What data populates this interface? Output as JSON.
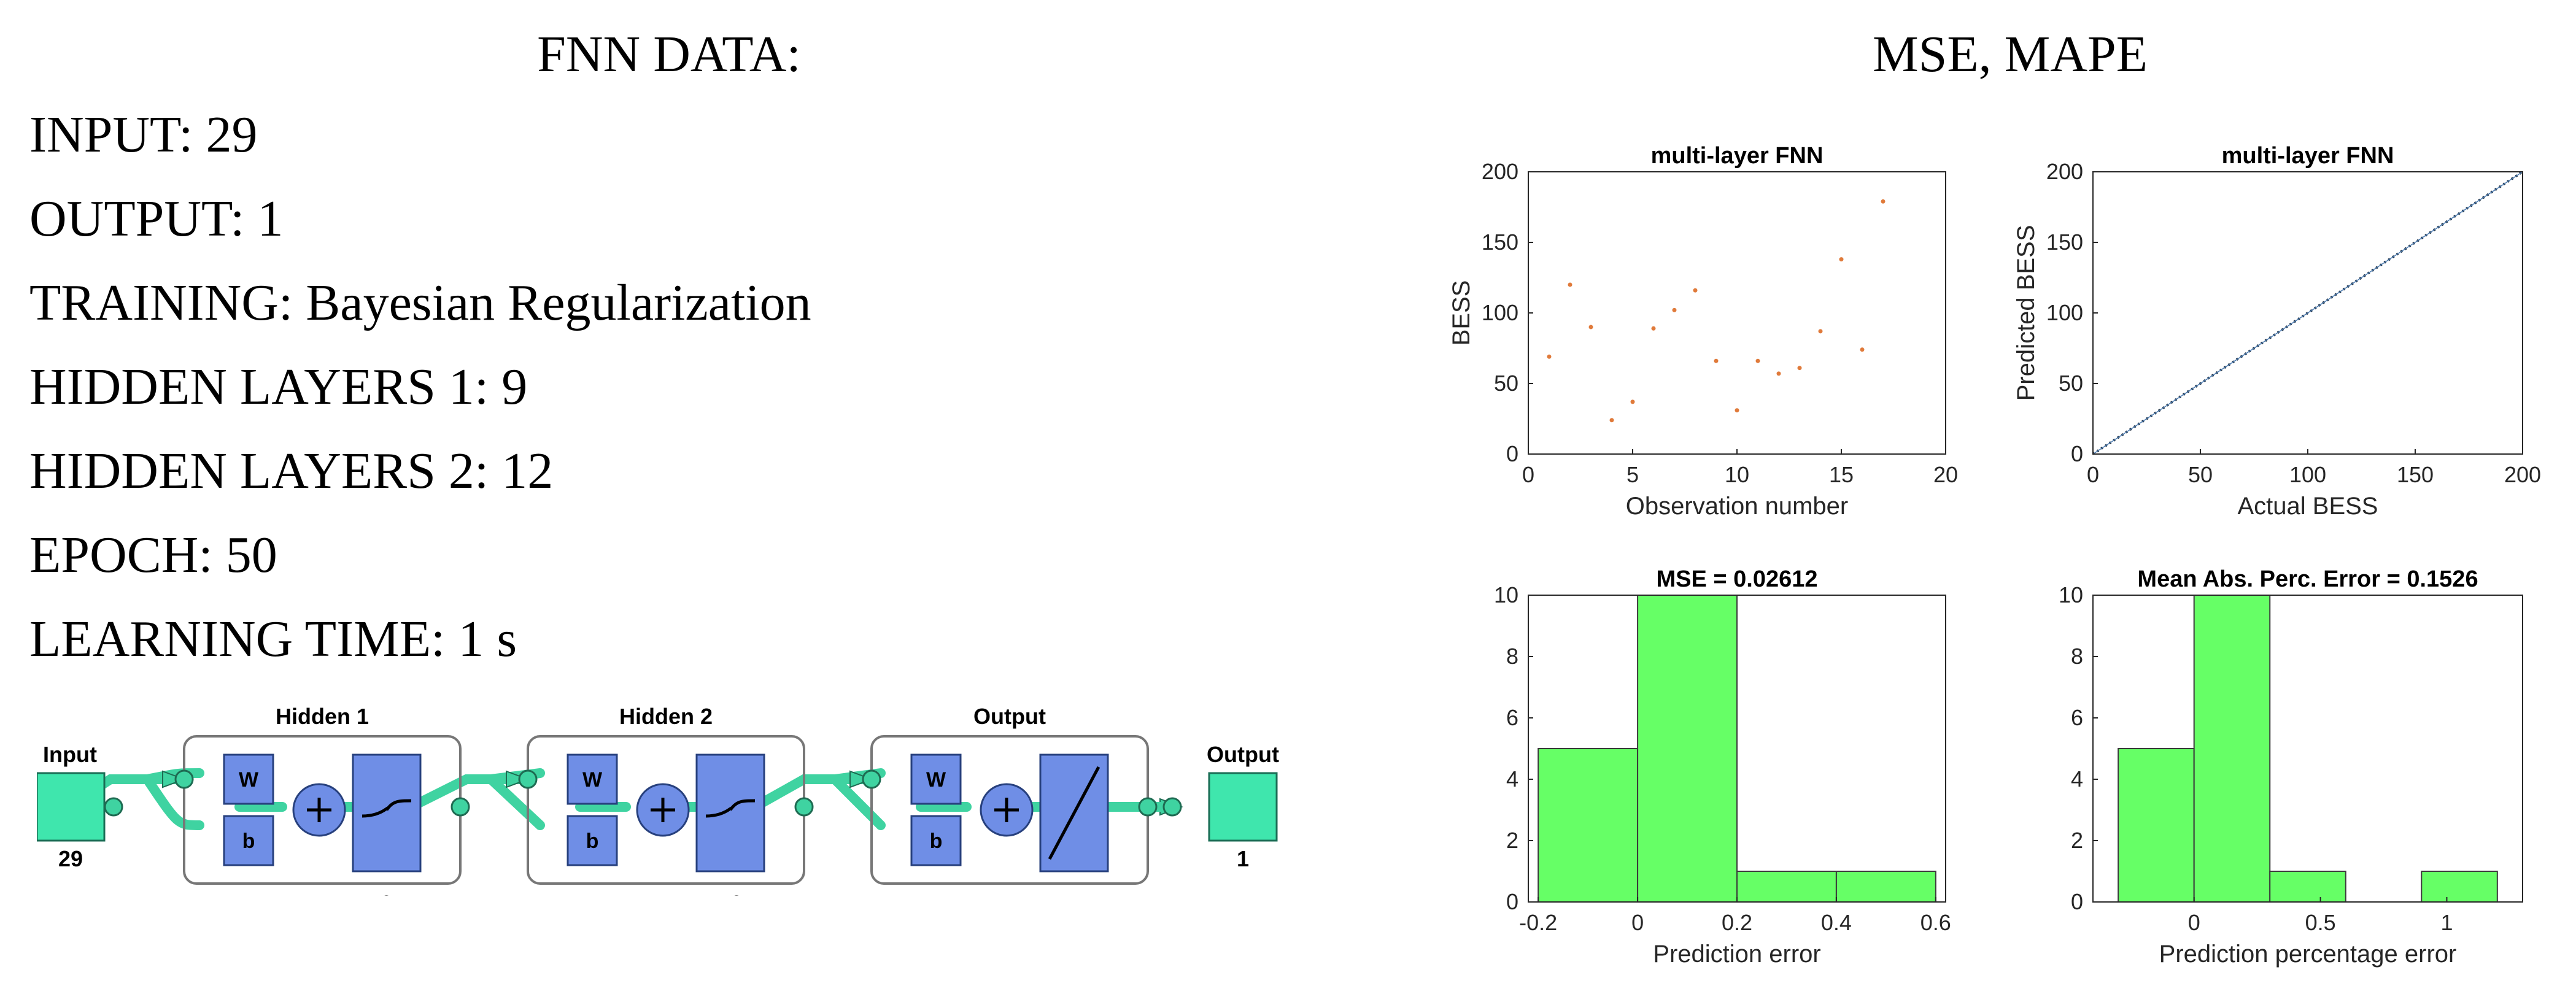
{
  "headings": {
    "left": "FNN DATA:",
    "right": "MSE, MAPE"
  },
  "specs": [
    {
      "key": "INPUT:",
      "value": "29"
    },
    {
      "key": "OUTPUT:",
      "value": "1"
    },
    {
      "key": "TRAINING:",
      "value": "Bayesian Regularization"
    },
    {
      "key": "HIDDEN LAYERS 1:",
      "value": "9"
    },
    {
      "key": "HIDDEN LAYERS 2:",
      "value": "12"
    },
    {
      "key": "EPOCH:",
      "value": "50"
    },
    {
      "key": "LEARNING TIME:",
      "value": "1 s"
    }
  ],
  "network": {
    "input": {
      "label": "Input",
      "size": "29"
    },
    "output": {
      "label": "Output",
      "size": "1"
    },
    "layers": [
      {
        "label": "Hidden 1",
        "size": "9",
        "activation": "sigmoid"
      },
      {
        "label": "Hidden 2",
        "size": "12",
        "activation": "sigmoid"
      },
      {
        "label": "Output",
        "size": "1",
        "activation": "linear"
      }
    ],
    "weight_label": "W",
    "bias_label": "b",
    "colors": {
      "block": "#6f8ee6",
      "io": "#3fe6ad",
      "wire": "#3fd3a1",
      "node": "#3fd3a1"
    }
  },
  "chart_data": [
    {
      "id": "obs",
      "type": "scatter",
      "title": "multi-layer FNN",
      "xlabel": "Observation number",
      "ylabel": "BESS",
      "xlim": [
        0,
        20
      ],
      "ylim": [
        0,
        200
      ],
      "xticks": [
        "0",
        "5",
        "10",
        "15",
        "20"
      ],
      "yticks": [
        "0",
        "50",
        "100",
        "150",
        "200"
      ],
      "series": [
        {
          "color": "#e07a3a",
          "x": [
            1,
            2,
            3,
            4,
            5,
            6,
            7,
            8,
            9,
            10,
            11,
            12,
            13,
            14,
            15,
            16,
            17
          ],
          "y": [
            69,
            120,
            90,
            24,
            37,
            89,
            102,
            116,
            66,
            31,
            66,
            57,
            61,
            87,
            138,
            74,
            179
          ]
        }
      ]
    },
    {
      "id": "reg",
      "type": "line",
      "title": "multi-layer FNN",
      "xlabel": "Actual BESS",
      "ylabel": "Predicted BESS",
      "xlim": [
        0,
        200
      ],
      "ylim": [
        0,
        200
      ],
      "xticks": [
        "0",
        "50",
        "100",
        "150",
        "200"
      ],
      "yticks": [
        "0",
        "50",
        "100",
        "150",
        "200"
      ],
      "series": [
        {
          "color": "#4a7ab0",
          "x": [
            0,
            200
          ],
          "y": [
            0,
            200
          ]
        }
      ]
    },
    {
      "id": "mse",
      "type": "bar",
      "title": "MSE = 0.02612",
      "xlabel": "Prediction error",
      "ylabel": "",
      "xlim": [
        -0.22,
        0.62
      ],
      "ylim": [
        0,
        10
      ],
      "xticks": [
        "-0.2",
        "0",
        "0.2",
        "0.4",
        "0.6"
      ],
      "xtick_values": [
        -0.2,
        0,
        0.2,
        0.4,
        0.6
      ],
      "yticks": [
        "0",
        "2",
        "4",
        "6",
        "8",
        "10"
      ],
      "color": "#66ff66",
      "bins": [
        [
          -0.2,
          0,
          5
        ],
        [
          0,
          0.2,
          10
        ],
        [
          0.2,
          0.4,
          1
        ],
        [
          0.4,
          0.6,
          1
        ]
      ]
    },
    {
      "id": "mape",
      "type": "bar",
      "title": "Mean Abs. Perc. Error = 0.1526",
      "xlabel": "Prediction percentage error",
      "ylabel": "",
      "xlim": [
        -0.4,
        1.3
      ],
      "ylim": [
        0,
        10
      ],
      "xticks": [
        "0",
        "0.5",
        "1"
      ],
      "xtick_values": [
        0,
        0.5,
        1
      ],
      "yticks": [
        "0",
        "2",
        "4",
        "6",
        "8",
        "10"
      ],
      "color": "#66ff66",
      "bins": [
        [
          -0.3,
          0,
          5
        ],
        [
          0,
          0.3,
          10
        ],
        [
          0.3,
          0.6,
          1
        ],
        [
          0.6,
          0.9,
          0
        ],
        [
          0.9,
          1.2,
          1
        ]
      ]
    }
  ]
}
